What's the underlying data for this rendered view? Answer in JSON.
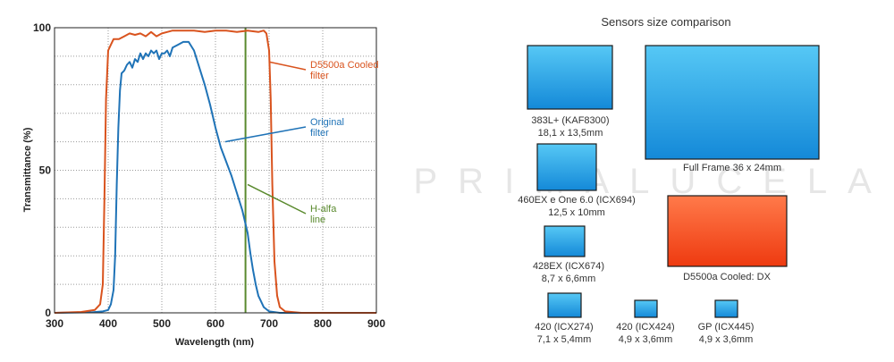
{
  "watermark": "PRIMALUCELAB",
  "chart_data": {
    "type": "line",
    "xlabel": "Wavelength (nm)",
    "ylabel": "Transmittance (%)",
    "xlim": [
      300,
      900
    ],
    "ylim": [
      0,
      100
    ],
    "xticks": [
      300,
      400,
      500,
      600,
      700,
      800,
      900
    ],
    "yticks": [
      0,
      50,
      100
    ],
    "grid": true,
    "series": [
      {
        "name": "D5500a Cooled filter",
        "color": "#d9531e",
        "points": [
          [
            300,
            0
          ],
          [
            350,
            0.3
          ],
          [
            375,
            1
          ],
          [
            385,
            3
          ],
          [
            390,
            10
          ],
          [
            393,
            40
          ],
          [
            396,
            75
          ],
          [
            400,
            92
          ],
          [
            405,
            94
          ],
          [
            410,
            96
          ],
          [
            420,
            96
          ],
          [
            430,
            97
          ],
          [
            440,
            98
          ],
          [
            450,
            97.5
          ],
          [
            460,
            98
          ],
          [
            470,
            97
          ],
          [
            480,
            98.5
          ],
          [
            490,
            97
          ],
          [
            500,
            98
          ],
          [
            510,
            98.5
          ],
          [
            520,
            99
          ],
          [
            540,
            99
          ],
          [
            560,
            99
          ],
          [
            580,
            98.5
          ],
          [
            600,
            99
          ],
          [
            620,
            99
          ],
          [
            640,
            98.5
          ],
          [
            660,
            99
          ],
          [
            680,
            98.5
          ],
          [
            690,
            99
          ],
          [
            695,
            98
          ],
          [
            700,
            92
          ],
          [
            703,
            75
          ],
          [
            706,
            45
          ],
          [
            710,
            18
          ],
          [
            715,
            6
          ],
          [
            720,
            2
          ],
          [
            730,
            0.5
          ],
          [
            760,
            0
          ],
          [
            900,
            0
          ]
        ]
      },
      {
        "name": "Original filter",
        "color": "#1f73b7",
        "points": [
          [
            300,
            0
          ],
          [
            370,
            0.2
          ],
          [
            390,
            0.5
          ],
          [
            400,
            1
          ],
          [
            405,
            3
          ],
          [
            410,
            8
          ],
          [
            413,
            20
          ],
          [
            416,
            45
          ],
          [
            419,
            65
          ],
          [
            422,
            78
          ],
          [
            425,
            84
          ],
          [
            430,
            85
          ],
          [
            435,
            87
          ],
          [
            440,
            88
          ],
          [
            445,
            86
          ],
          [
            450,
            89
          ],
          [
            455,
            88
          ],
          [
            460,
            91
          ],
          [
            465,
            89
          ],
          [
            470,
            91
          ],
          [
            475,
            90
          ],
          [
            480,
            92
          ],
          [
            485,
            91
          ],
          [
            490,
            92
          ],
          [
            495,
            89
          ],
          [
            500,
            91
          ],
          [
            505,
            91
          ],
          [
            510,
            92
          ],
          [
            515,
            90
          ],
          [
            520,
            93
          ],
          [
            530,
            94
          ],
          [
            540,
            95
          ],
          [
            550,
            95
          ],
          [
            560,
            92
          ],
          [
            570,
            86
          ],
          [
            580,
            80
          ],
          [
            590,
            73
          ],
          [
            600,
            65
          ],
          [
            610,
            58
          ],
          [
            620,
            53
          ],
          [
            630,
            48
          ],
          [
            640,
            42
          ],
          [
            650,
            36
          ],
          [
            655,
            32
          ],
          [
            660,
            28
          ],
          [
            665,
            21
          ],
          [
            670,
            15
          ],
          [
            675,
            10
          ],
          [
            680,
            6
          ],
          [
            685,
            4
          ],
          [
            690,
            2
          ],
          [
            700,
            0.5
          ],
          [
            720,
            0
          ],
          [
            900,
            0
          ]
        ]
      },
      {
        "name": "H-alfa line",
        "color": "#5a8a2e",
        "points": [
          [
            656,
            0
          ],
          [
            656,
            100
          ]
        ]
      }
    ],
    "annotations": [
      {
        "label_line1": "D5500a Cooled",
        "label_line2": "filter",
        "color": "#d9531e",
        "points_to": [
          700,
          88
        ]
      },
      {
        "label_line1": "Original",
        "label_line2": "filter",
        "color": "#1f73b7",
        "points_to": [
          618,
          60
        ]
      },
      {
        "label_line1": "H-alfa",
        "label_line2": "line",
        "color": "#5a8a2e",
        "points_to": [
          660,
          45
        ]
      }
    ]
  },
  "sensors": {
    "title": "Sensors size comparison",
    "items": [
      {
        "line1": "383L+ (KAF8300)",
        "line2": "18,1 x 13,5mm",
        "kind": "blue"
      },
      {
        "line1": "Full Frame 36 x 24mm",
        "line2": "",
        "kind": "blue"
      },
      {
        "line1": "460EX e One 6.0 (ICX694)",
        "line2": "12,5 x 10mm",
        "kind": "blue"
      },
      {
        "line1": "D5500a Cooled: DX",
        "line2": "",
        "kind": "orange"
      },
      {
        "line1": "428EX (ICX674)",
        "line2": "8,7 x 6,6mm",
        "kind": "blue"
      },
      {
        "line1": "420 (ICX274)",
        "line2": "7,1 x 5,4mm",
        "kind": "blue"
      },
      {
        "line1": "420 (ICX424)",
        "line2": "4,9 x 3,6mm",
        "kind": "blue"
      },
      {
        "line1": "GP (ICX445)",
        "line2": "4,9 x 3,6mm",
        "kind": "blue"
      }
    ]
  }
}
